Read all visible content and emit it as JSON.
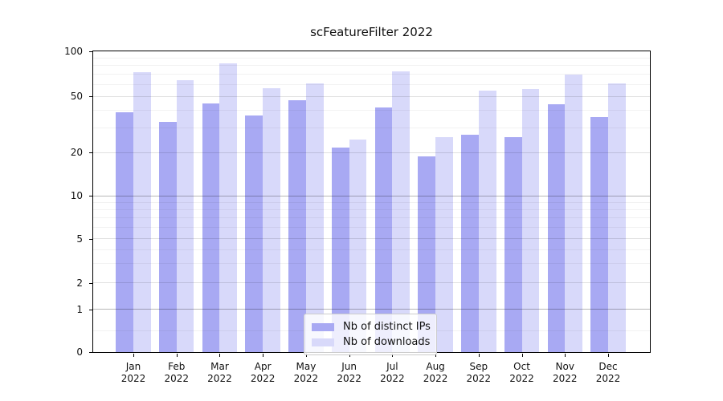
{
  "title": "scFeatureFilter 2022",
  "chart_data": {
    "type": "bar",
    "title": "scFeatureFilter 2022",
    "x_ticks": [
      {
        "month": "Jan",
        "year": "2022"
      },
      {
        "month": "Feb",
        "year": "2022"
      },
      {
        "month": "Mar",
        "year": "2022"
      },
      {
        "month": "Apr",
        "year": "2022"
      },
      {
        "month": "May",
        "year": "2022"
      },
      {
        "month": "Jun",
        "year": "2022"
      },
      {
        "month": "Jul",
        "year": "2022"
      },
      {
        "month": "Aug",
        "year": "2022"
      },
      {
        "month": "Sep",
        "year": "2022"
      },
      {
        "month": "Oct",
        "year": "2022"
      },
      {
        "month": "Nov",
        "year": "2022"
      },
      {
        "month": "Dec",
        "year": "2022"
      }
    ],
    "series": [
      {
        "name": "Nb of distinct IPs",
        "color": "#a8a9f3",
        "values": [
          39,
          33,
          45,
          37,
          47,
          22,
          42,
          19,
          27,
          26,
          44,
          36
        ]
      },
      {
        "name": "Nb of downloads",
        "color": "#d8d9fa",
        "values": [
          73,
          64,
          83,
          57,
          61,
          25,
          74,
          26,
          55,
          56,
          70,
          61
        ]
      }
    ],
    "y_axis": {
      "scale": "asinh (log above 1, linear below 1)",
      "ylim": [
        0,
        100
      ],
      "tick_labels": [
        "100",
        "50",
        "20",
        "10",
        "5",
        "2",
        "1",
        "0"
      ],
      "tick_values": [
        100,
        50,
        20,
        10,
        5,
        2,
        1,
        0
      ],
      "major_gridlines": [
        1,
        10
      ],
      "labeled_gridlines": [
        2,
        5,
        20,
        50
      ],
      "minor_gridlines": [
        0.5,
        3,
        4,
        6,
        7,
        8,
        9,
        30,
        40,
        60,
        70,
        80,
        90
      ],
      "scale_anchors": [
        [
          0,
          0
        ],
        [
          1,
          0.1409
        ],
        [
          2,
          0.2283
        ],
        [
          5,
          0.3748
        ],
        [
          10,
          0.5179
        ],
        [
          20,
          0.6618
        ],
        [
          50,
          0.849
        ],
        [
          100,
          1.0
        ]
      ]
    },
    "grid": "horizontal, drawn over bars",
    "legend_position": "lower center"
  },
  "colors": {
    "background": "#ffffff",
    "spine": "#000000",
    "major_grid": "rgba(0,0,0,0.28)",
    "labeled_grid": "rgba(0,0,0,0.12)",
    "minor_grid": "rgba(0,0,0,0.05)"
  }
}
